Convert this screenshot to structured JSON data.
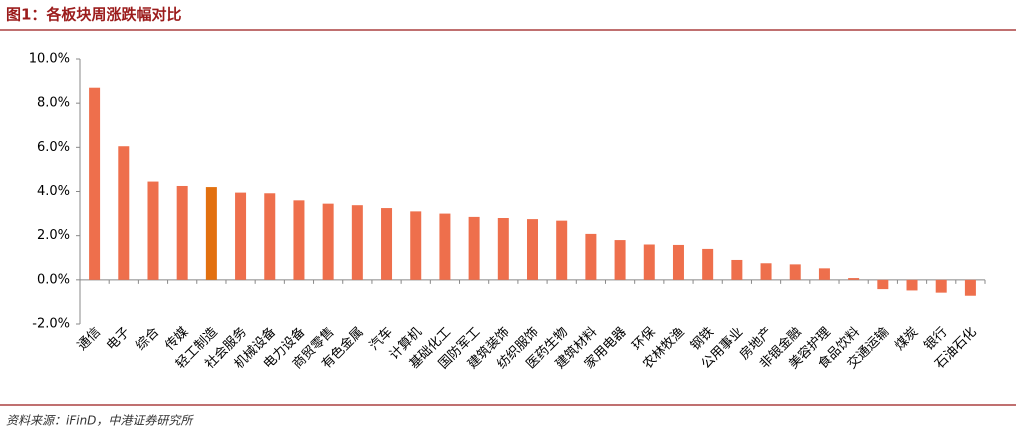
{
  "chart_data": {
    "type": "bar",
    "title": "图1：各板块周涨跌幅对比",
    "source": "资料来源：iFinD，中港证券研究所",
    "categories": [
      "通信",
      "电子",
      "综合",
      "传媒",
      "轻工制造",
      "社会服务",
      "机械设备",
      "电力设备",
      "商贸零售",
      "有色金属",
      "汽车",
      "计算机",
      "基础化工",
      "国防军工",
      "建筑装饰",
      "纺织服饰",
      "医药生物",
      "建筑材料",
      "家用电器",
      "环保",
      "农林牧渔",
      "钢铁",
      "公用事业",
      "房地产",
      "非银金融",
      "美容护理",
      "食品饮料",
      "交通运输",
      "煤炭",
      "银行",
      "石油石化"
    ],
    "values": [
      8.7,
      6.05,
      4.45,
      4.25,
      4.2,
      3.95,
      3.92,
      3.6,
      3.45,
      3.38,
      3.25,
      3.1,
      3.0,
      2.85,
      2.8,
      2.75,
      2.68,
      2.08,
      1.8,
      1.6,
      1.58,
      1.4,
      0.9,
      0.75,
      0.7,
      0.52,
      0.08,
      -0.42,
      -0.48,
      -0.58,
      -0.72
    ],
    "colors": [
      "#ee6f4c",
      "#ee6f4c",
      "#ee6f4c",
      "#ee6f4c",
      "#e2700f",
      "#ee6f4c",
      "#ee6f4c",
      "#ee6f4c",
      "#ee6f4c",
      "#ee6f4c",
      "#ee6f4c",
      "#ee6f4c",
      "#ee6f4c",
      "#ee6f4c",
      "#ee6f4c",
      "#ee6f4c",
      "#ee6f4c",
      "#ee6f4c",
      "#ee6f4c",
      "#ee6f4c",
      "#ee6f4c",
      "#ee6f4c",
      "#ee6f4c",
      "#ee6f4c",
      "#ee6f4c",
      "#ee6f4c",
      "#ee6f4c",
      "#ee6f4c",
      "#ee6f4c",
      "#ee6f4c",
      "#ee6f4c"
    ],
    "ylim": [
      -2,
      10
    ],
    "yticks": [
      {
        "value": -2,
        "label": "-2.0%"
      },
      {
        "value": 0,
        "label": "0.0%"
      },
      {
        "value": 2,
        "label": "2.0%"
      },
      {
        "value": 4,
        "label": "4.0%"
      },
      {
        "value": 6,
        "label": "6.0%"
      },
      {
        "value": 8,
        "label": "8.0%"
      },
      {
        "value": 10,
        "label": "10.0%"
      }
    ],
    "grid": false
  }
}
